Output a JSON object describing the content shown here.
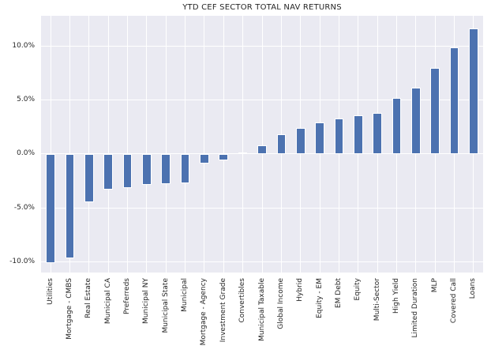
{
  "colors": {
    "bar": "#4c72b0",
    "plot_background": "#eaeaf2",
    "gridline": "#ffffff",
    "figure_background": "#ffffff",
    "text": "#262626"
  },
  "chart_data": {
    "type": "bar",
    "title": "YTD CEF SECTOR TOTAL NAV RETURNS",
    "xlabel": "",
    "ylabel": "",
    "grid": true,
    "legend": false,
    "orientation": "vertical",
    "ylim": [
      -11.0,
      12.8
    ],
    "yticks": [
      10,
      5,
      0,
      -5,
      -10
    ],
    "ytick_labels": [
      "10.0%",
      "5.0%",
      "0.0%",
      "-5.0%",
      "-10.0%"
    ],
    "categories": [
      "Utilities",
      "Mortgage - CMBS",
      "Real Estate",
      "Municipal CA",
      "Preferreds",
      "Municipal NY",
      "Municipal State",
      "Municipal",
      "Mortgage - Agency",
      "Investment Grade",
      "Convertibles",
      "Municipal Taxable",
      "Global Income",
      "Hybrid",
      "Equity - EM",
      "EM Debt",
      "Equity",
      "Multi-Sector",
      "High Yield",
      "Limited Duration",
      "MLP",
      "Covered Call",
      "Loans"
    ],
    "values": [
      -10.1,
      -9.7,
      -4.5,
      -3.3,
      -3.2,
      -2.9,
      -2.8,
      -2.7,
      -0.9,
      -0.6,
      0.1,
      0.8,
      1.8,
      2.4,
      2.9,
      3.3,
      3.6,
      3.8,
      5.2,
      6.1,
      8.0,
      9.9,
      11.6
    ]
  }
}
